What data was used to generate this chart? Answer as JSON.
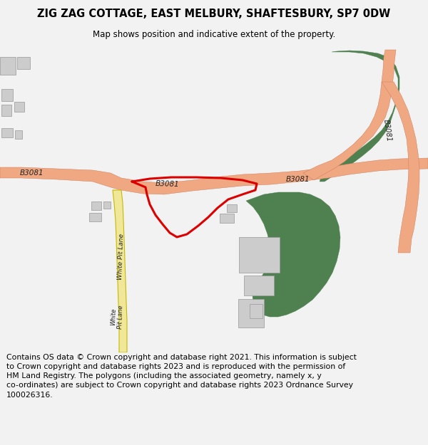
{
  "title_line1": "ZIG ZAG COTTAGE, EAST MELBURY, SHAFTESBURY, SP7 0DW",
  "title_line2": "Map shows position and indicative extent of the property.",
  "footer": "Contains OS data © Crown copyright and database right 2021. This information is subject\nto Crown copyright and database rights 2023 and is reproduced with the permission of\nHM Land Registry. The polygons (including the associated geometry, namely x, y\nco-ordinates) are subject to Crown copyright and database rights 2023 Ordnance Survey\n100026316.",
  "bg_color": "#f2f2f2",
  "map_bg": "#ffffff",
  "road_color": "#f0a882",
  "road_edge": "#cc7755",
  "lane_color": "#f0e898",
  "lane_edge": "#c8b800",
  "green_color": "#4e8050",
  "building_color": "#cccccc",
  "building_edge": "#999999",
  "plot_color": "#dd0000",
  "text_color": "#222222"
}
